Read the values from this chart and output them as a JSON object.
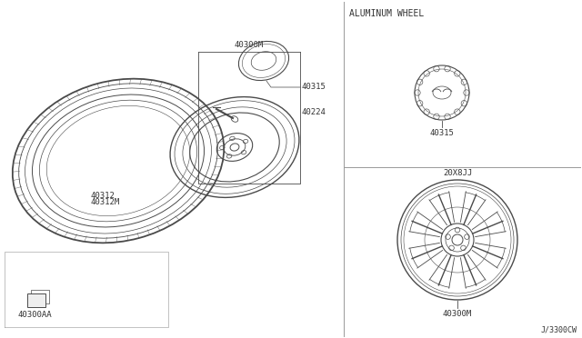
{
  "bg_color": "#ffffff",
  "line_color": "#4a4a4a",
  "text_color": "#333333",
  "title": "ALUMINUM WHEEL",
  "label_20x8jj": "20X8JJ",
  "label_40300M_main": "40300M",
  "label_40300M_right": "40300M",
  "label_40224": "40224",
  "label_40312": "40312",
  "label_40312M": "40312M",
  "label_40315_left": "40315",
  "label_40315_right": "40315",
  "label_40300AA": "40300AA",
  "diagram_number": "J/3300CW",
  "font_size_label": 6.5,
  "font_size_title": 7.0,
  "font_size_diag": 6.0
}
